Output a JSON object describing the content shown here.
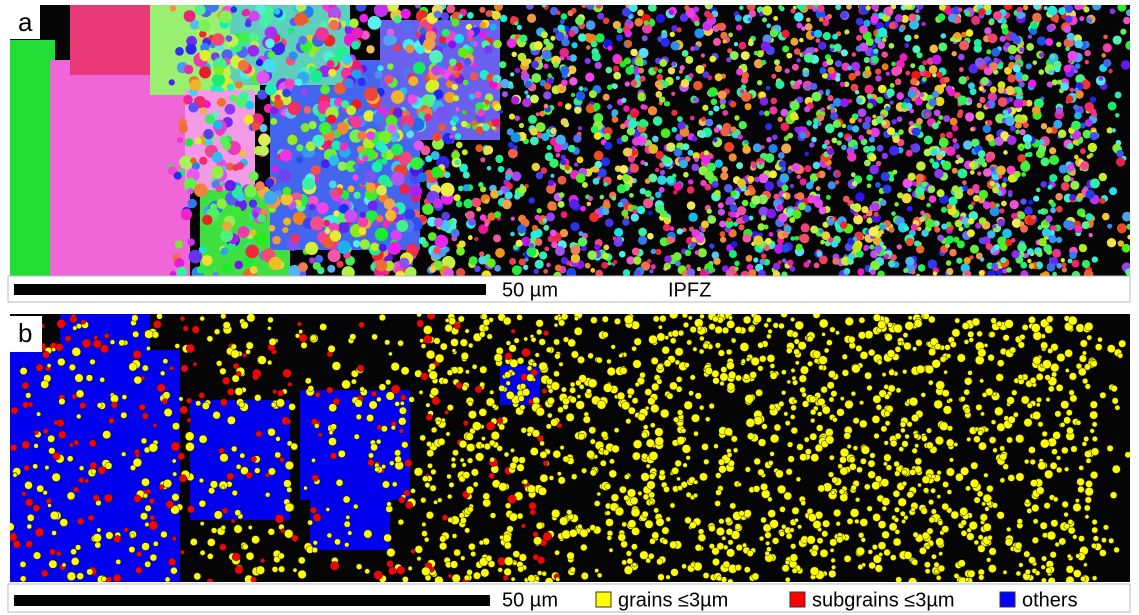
{
  "panels": [
    {
      "label": "a",
      "scale": "50 µm",
      "title": "IPFZ"
    },
    {
      "label": "b",
      "scale": "50 µm",
      "legend": [
        {
          "label": "grains ≤3µm",
          "color": "#ffff00"
        },
        {
          "label": "subgrains ≤3µm",
          "color": "#ff0000"
        },
        {
          "label": "others",
          "color": "#0000ff"
        }
      ]
    }
  ]
}
